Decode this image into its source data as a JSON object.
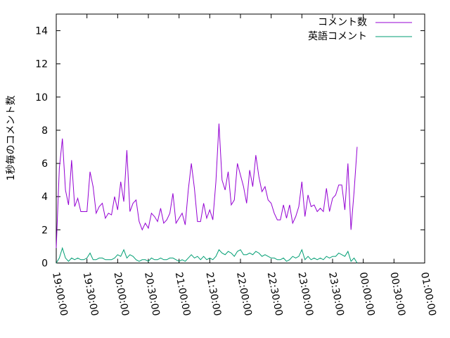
{
  "chart_data": {
    "type": "line",
    "title": "",
    "xlabel": "",
    "ylabel": "1秒毎のコメント数",
    "xlim": [
      "19:00:00",
      "01:00:00"
    ],
    "ylim": [
      0,
      15
    ],
    "x_ticks": [
      "19:00:00",
      "19:30:00",
      "20:00:00",
      "20:30:00",
      "21:00:00",
      "21:30:00",
      "22:00:00",
      "22:30:00",
      "23:00:00",
      "23:30:00",
      "00:00:00",
      "00:30:00",
      "01:00:00"
    ],
    "y_ticks": [
      "0",
      "2",
      "4",
      "6",
      "8",
      "10",
      "12",
      "14"
    ],
    "grid": false,
    "legend_position": "top-right",
    "series": [
      {
        "name": "コメント数",
        "color": "#9400d3",
        "x_start": "19:00:00",
        "x_step_minutes": 3,
        "values": [
          0.9,
          5.7,
          7.5,
          4.4,
          3.5,
          6.2,
          3.4,
          3.9,
          3.1,
          3.1,
          3.1,
          5.5,
          4.6,
          3.0,
          3.4,
          3.6,
          2.7,
          3.0,
          2.9,
          4.0,
          3.2,
          4.9,
          3.7,
          6.8,
          3.1,
          3.6,
          3.8,
          2.5,
          2.0,
          2.4,
          2.1,
          3.0,
          2.8,
          2.5,
          3.3,
          2.4,
          2.6,
          3.0,
          4.2,
          2.4,
          2.7,
          3.0,
          2.3,
          4.4,
          6.0,
          4.5,
          2.5,
          2.5,
          3.6,
          2.7,
          3.2,
          2.6,
          4.9,
          8.4,
          5.0,
          4.4,
          5.5,
          3.5,
          3.8,
          6.0,
          5.3,
          4.6,
          3.6,
          5.6,
          4.6,
          6.5,
          5.2,
          4.3,
          4.6,
          3.8,
          3.6,
          3.0,
          2.6,
          2.6,
          3.5,
          2.7,
          3.5,
          2.4,
          2.8,
          3.4,
          4.9,
          2.8,
          4.1,
          3.4,
          3.5,
          3.1,
          3.3,
          3.1,
          4.5,
          3.1,
          3.9,
          4.1,
          4.7,
          4.7,
          3.2,
          6.0,
          2.0,
          4.3,
          7.0
        ]
      },
      {
        "name": "英語コメント",
        "color": "#009e73",
        "x_start": "19:00:00",
        "x_step_minutes": 3,
        "values": [
          0.0,
          0.3,
          0.9,
          0.3,
          0.1,
          0.3,
          0.2,
          0.3,
          0.2,
          0.2,
          0.3,
          0.6,
          0.2,
          0.2,
          0.3,
          0.3,
          0.2,
          0.2,
          0.2,
          0.3,
          0.5,
          0.4,
          0.8,
          0.3,
          0.5,
          0.4,
          0.2,
          0.1,
          0.2,
          0.2,
          0.1,
          0.3,
          0.2,
          0.2,
          0.3,
          0.2,
          0.2,
          0.3,
          0.3,
          0.2,
          0.1,
          0.2,
          0.1,
          0.3,
          0.5,
          0.3,
          0.4,
          0.2,
          0.4,
          0.2,
          0.3,
          0.2,
          0.4,
          0.8,
          0.6,
          0.5,
          0.7,
          0.6,
          0.4,
          0.7,
          0.8,
          0.5,
          0.5,
          0.6,
          0.5,
          0.7,
          0.6,
          0.4,
          0.5,
          0.4,
          0.3,
          0.3,
          0.2,
          0.2,
          0.3,
          0.1,
          0.2,
          0.4,
          0.3,
          0.4,
          0.8,
          0.2,
          0.4,
          0.2,
          0.3,
          0.2,
          0.3,
          0.2,
          0.4,
          0.3,
          0.4,
          0.4,
          0.6,
          0.5,
          0.4,
          0.7,
          0.1,
          0.3,
          0.0
        ]
      }
    ]
  }
}
